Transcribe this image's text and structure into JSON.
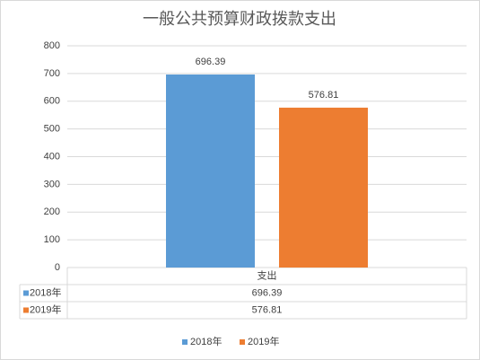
{
  "chart_data": {
    "type": "bar",
    "title": "一般公共预算财政拨款支出",
    "categories": [
      "支出"
    ],
    "series": [
      {
        "name": "2018年",
        "color": "#5b9bd5",
        "values": [
          696.39
        ]
      },
      {
        "name": "2019年",
        "color": "#ed7d31",
        "values": [
          576.81
        ]
      }
    ],
    "ylim": [
      0,
      800
    ],
    "yticks": [
      0,
      100,
      200,
      300,
      400,
      500,
      600,
      700,
      800
    ],
    "grid": true,
    "legend": "bottom",
    "data_table": true
  }
}
